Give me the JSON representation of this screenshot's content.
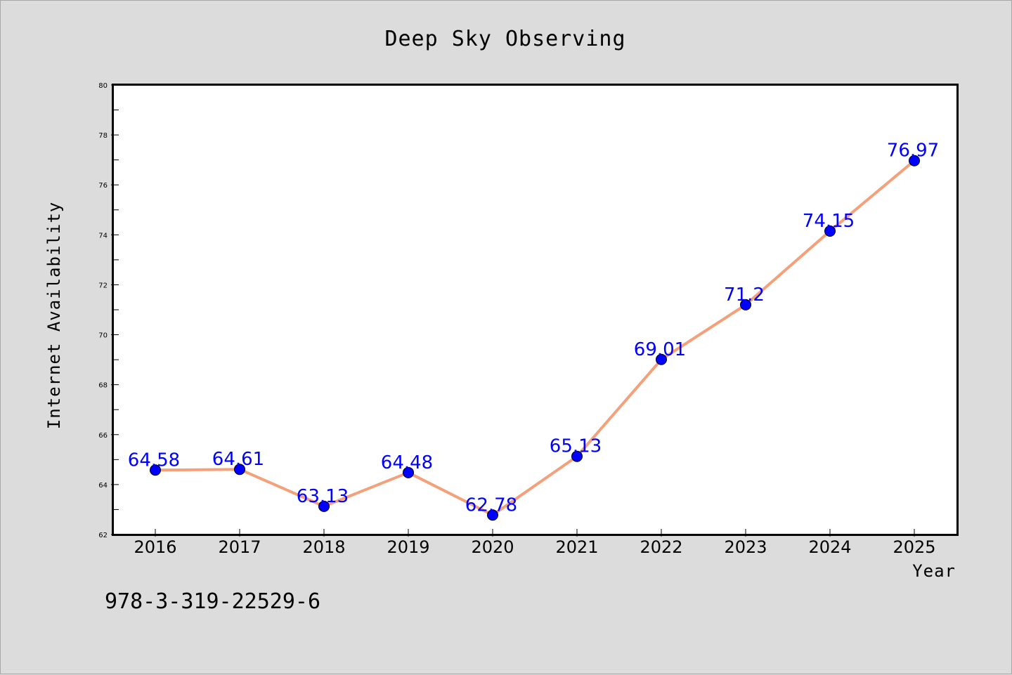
{
  "chart_data": {
    "type": "line",
    "title": "Deep Sky Observing",
    "xlabel": "Year",
    "ylabel": "Internet Availability",
    "categories": [
      "2016",
      "2017",
      "2018",
      "2019",
      "2020",
      "2021",
      "2022",
      "2023",
      "2024",
      "2025"
    ],
    "series": [
      {
        "values": [
          64.58,
          64.61,
          63.13,
          64.48,
          62.78,
          65.13,
          69.01,
          71.2,
          74.15,
          76.97
        ],
        "data_labels": [
          "64.58",
          "64.61",
          "63.13",
          "64.48",
          "62.78",
          "65.13",
          "69.01",
          "71.2",
          "74.15",
          "76.97"
        ]
      }
    ],
    "ylim": [
      62,
      80
    ],
    "yticks": [
      "62",
      "64",
      "66",
      "68",
      "70",
      "72",
      "74",
      "76",
      "78",
      "80"
    ],
    "grid": false,
    "colors": {
      "line": "#f4a07a",
      "marker": "#0000ff",
      "data_label": "#0000ff",
      "background": "#dcdcdc",
      "plot_background": "#ffffff"
    }
  },
  "footnote": "978-3-319-22529-6"
}
